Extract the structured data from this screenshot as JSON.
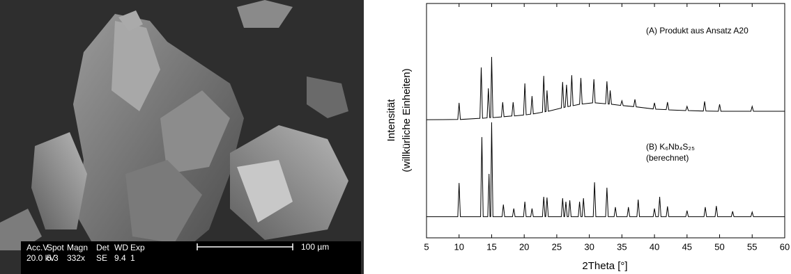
{
  "sem_image": {
    "info_labels": [
      "Acc.V",
      "Spot",
      "Magn",
      "Det",
      "WD",
      "Exp"
    ],
    "info_values": [
      "20.0 kV",
      "5.3",
      "332x",
      "SE",
      "9.4",
      "1"
    ],
    "scale_label": "100 µm"
  },
  "chart_data": {
    "type": "line",
    "xlabel": "2Theta [°]",
    "ylabel": [
      "Intensität",
      "(willkürliche Einheiten)"
    ],
    "annotations": [
      "(A) Produkt aus Ansatz A20",
      "(B) K₆Nb₄S₂₅",
      "(berechnet)"
    ],
    "xlim": [
      5,
      60
    ],
    "xticks": [
      5,
      10,
      15,
      20,
      25,
      30,
      35,
      40,
      45,
      50,
      55,
      60
    ],
    "ylim": [
      0,
      100
    ],
    "grid": false,
    "series": [
      {
        "color": "#000000",
        "x": [
          5,
          9.8,
          10,
          10.2,
          13.2,
          13.4,
          13.6,
          14.3,
          14.5,
          14.7,
          14.85,
          15,
          15.2,
          16.5,
          16.7,
          16.9,
          18.1,
          18.3,
          18.5,
          19.9,
          20.1,
          20.3,
          21,
          21.2,
          21.4,
          22.8,
          23,
          23.2,
          23.35,
          23.5,
          23.7,
          25.7,
          25.9,
          26.1,
          26.3,
          26.5,
          26.7,
          27.1,
          27.3,
          27.5,
          28.5,
          28.7,
          28.9,
          30.5,
          30.7,
          30.9,
          32.5,
          32.7,
          32.9,
          33.05,
          33.2,
          33.4,
          34.8,
          35,
          35.2,
          36.8,
          37,
          37.2,
          39.8,
          40,
          40.2,
          41.8,
          42,
          42.2,
          44.8,
          45,
          45.2,
          47.5,
          47.7,
          47.9,
          49.8,
          50,
          50.2,
          54.8,
          55,
          55.2,
          60
        ],
        "values": [
          50.4,
          50.5,
          57.6,
          50.5,
          51,
          72.7,
          51,
          51.2,
          63.8,
          51.3,
          51.3,
          77.2,
          51.3,
          51.6,
          57.9,
          51.7,
          52,
          57.9,
          52,
          52.4,
          65.9,
          52.5,
          52.8,
          60.5,
          52.9,
          53.6,
          69.1,
          53.8,
          53.9,
          62.9,
          54,
          55.4,
          66.5,
          55.6,
          55.8,
          65.3,
          56,
          56.2,
          69.4,
          56.4,
          57,
          68.2,
          57.1,
          57.6,
          67.7,
          57.6,
          57.2,
          66.8,
          57.1,
          57.1,
          62.9,
          57,
          56.5,
          58.5,
          56.4,
          56,
          59.1,
          55.9,
          55,
          57.6,
          54.9,
          54.7,
          57.9,
          54.6,
          54.3,
          56.1,
          54.3,
          54.1,
          58.2,
          54.1,
          54,
          57,
          54,
          54,
          56.1,
          54,
          54
        ]
      },
      {
        "color": "#000000",
        "x": [
          5,
          9.8,
          10,
          10.2,
          13.3,
          13.5,
          13.7,
          14.4,
          14.6,
          14.75,
          14.85,
          15,
          15.2,
          16.6,
          16.8,
          17,
          18.2,
          18.4,
          18.6,
          19.9,
          20.1,
          20.3,
          21,
          21.2,
          21.4,
          22.8,
          23,
          23.2,
          23.3,
          23.5,
          23.7,
          25.7,
          25.9,
          26.1,
          26.2,
          26.4,
          26.6,
          26.8,
          27,
          27.2,
          28.3,
          28.5,
          28.7,
          28.9,
          29.1,
          29.3,
          30.6,
          30.8,
          31,
          32.5,
          32.7,
          32.9,
          33.8,
          34,
          34.2,
          35.8,
          36,
          36.2,
          37.3,
          37.5,
          37.7,
          39.8,
          40,
          40.2,
          40.6,
          40.8,
          41,
          41.8,
          42,
          42.2,
          44.8,
          45,
          45.2,
          47.6,
          47.8,
          48,
          49.3,
          49.5,
          49.7,
          51.8,
          52,
          52.2,
          54.8,
          55,
          55.2,
          60
        ],
        "values": [
          9,
          9,
          23.4,
          9,
          9,
          43,
          9,
          9,
          27.3,
          9,
          9,
          49.3,
          9,
          9,
          14.2,
          9,
          9,
          12.5,
          9,
          9,
          15.4,
          9,
          9,
          12.5,
          9,
          9,
          17.5,
          9,
          9,
          17.2,
          9,
          9,
          16.9,
          9,
          9,
          15.4,
          9,
          9,
          16,
          9,
          9,
          15.4,
          9,
          9,
          16.9,
          9,
          9,
          23.7,
          9,
          9,
          21.4,
          9,
          9,
          13.1,
          9,
          9,
          13.1,
          9,
          9,
          16.3,
          9,
          9,
          12.5,
          9,
          9,
          17.5,
          9,
          9,
          13.4,
          9,
          9,
          11.6,
          9,
          9,
          13.1,
          9,
          9,
          13.6,
          9,
          9,
          11.3,
          9,
          9,
          11,
          9,
          9
        ]
      }
    ]
  }
}
